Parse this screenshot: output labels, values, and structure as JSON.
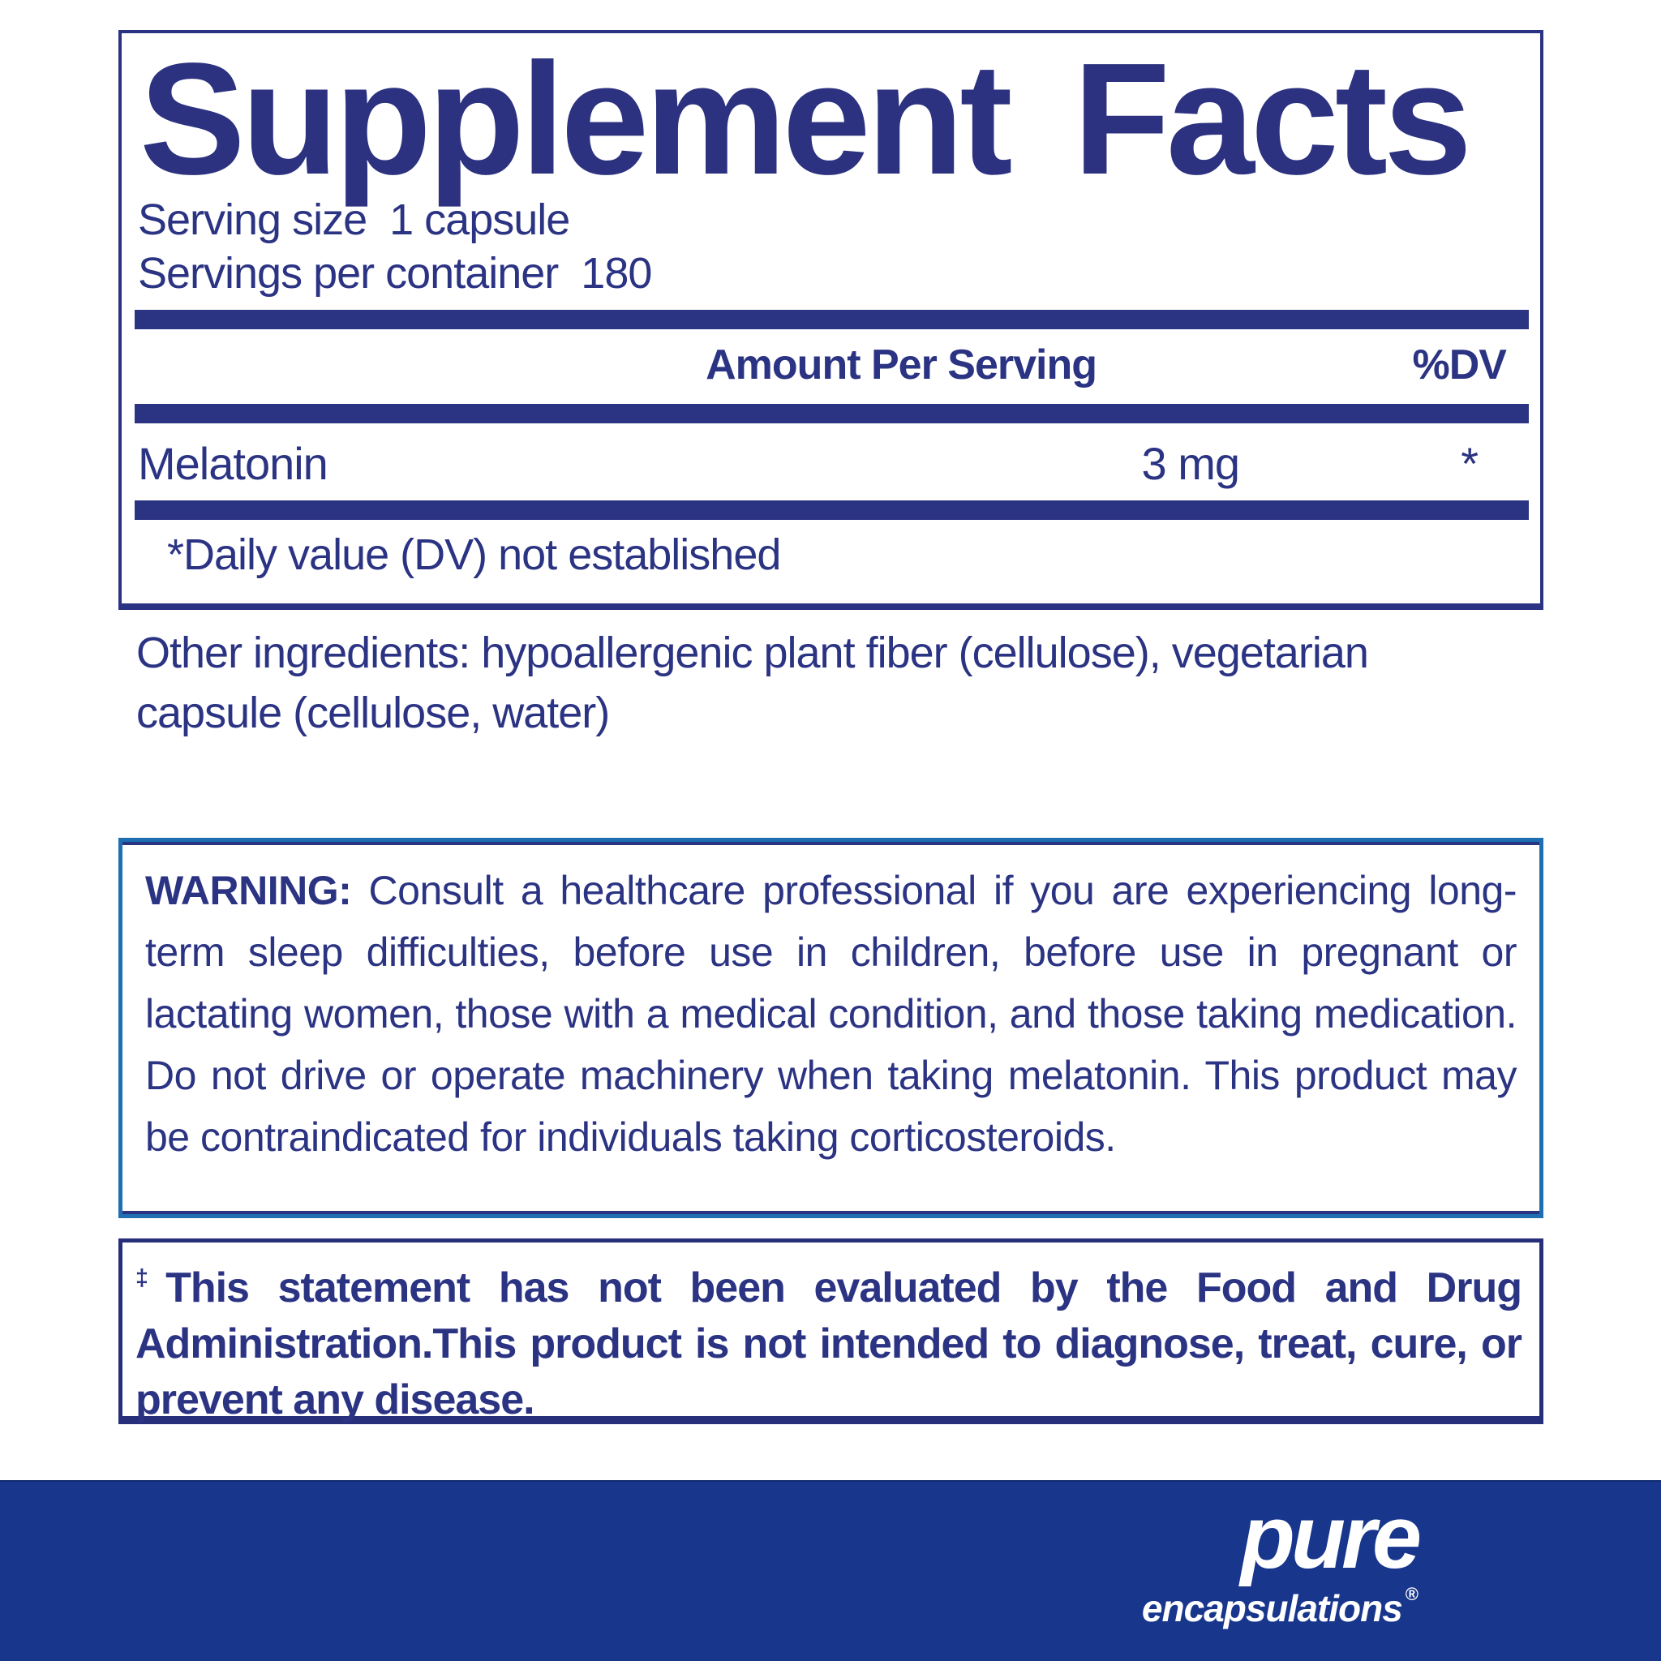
{
  "panel": {
    "title": "Supplement Facts",
    "serving_size_line": "Serving size  1 capsule",
    "servings_per_container_line": "Servings per container  180",
    "amount_header": "Amount Per Serving",
    "dv_header": "%DV",
    "rows": [
      {
        "name": "Melatonin",
        "amount": "3 mg",
        "dv": "*"
      }
    ],
    "footnote": "*Daily value (DV) not established"
  },
  "other_ingredients": "Other ingredients: hypoallergenic plant fiber (cellulose), vegetarian capsule (cellulose, water)",
  "warning": {
    "label": "WARNING:",
    "text": " Consult a healthcare professional if you are experiencing long-term sleep difficulties, before use in children, before use in pregnant or lactating women, those with a medical condition, and those taking medication. Do not drive or operate machinery when taking melatonin. This product may be contraindicated for individuals taking corticosteroids."
  },
  "fda_disclaimer": {
    "mark": "‡",
    "text": "This statement has not been evaluated by the Food and Drug Administration.This product is not intended to diagnose, treat, cure, or prevent any disease."
  },
  "brand": {
    "name": "pure",
    "subname": "encapsulations",
    "registered": "®"
  },
  "colors": {
    "ink_navy": "#2b3383",
    "divider_bar": "#2b3383",
    "warning_border_outer": "#1e6fb2",
    "warning_border_inner": "#2a3480",
    "fda_border": "#272f7b",
    "footer_band": "#17368c",
    "logo_text": "#ffffff",
    "background": "#ffffff"
  }
}
